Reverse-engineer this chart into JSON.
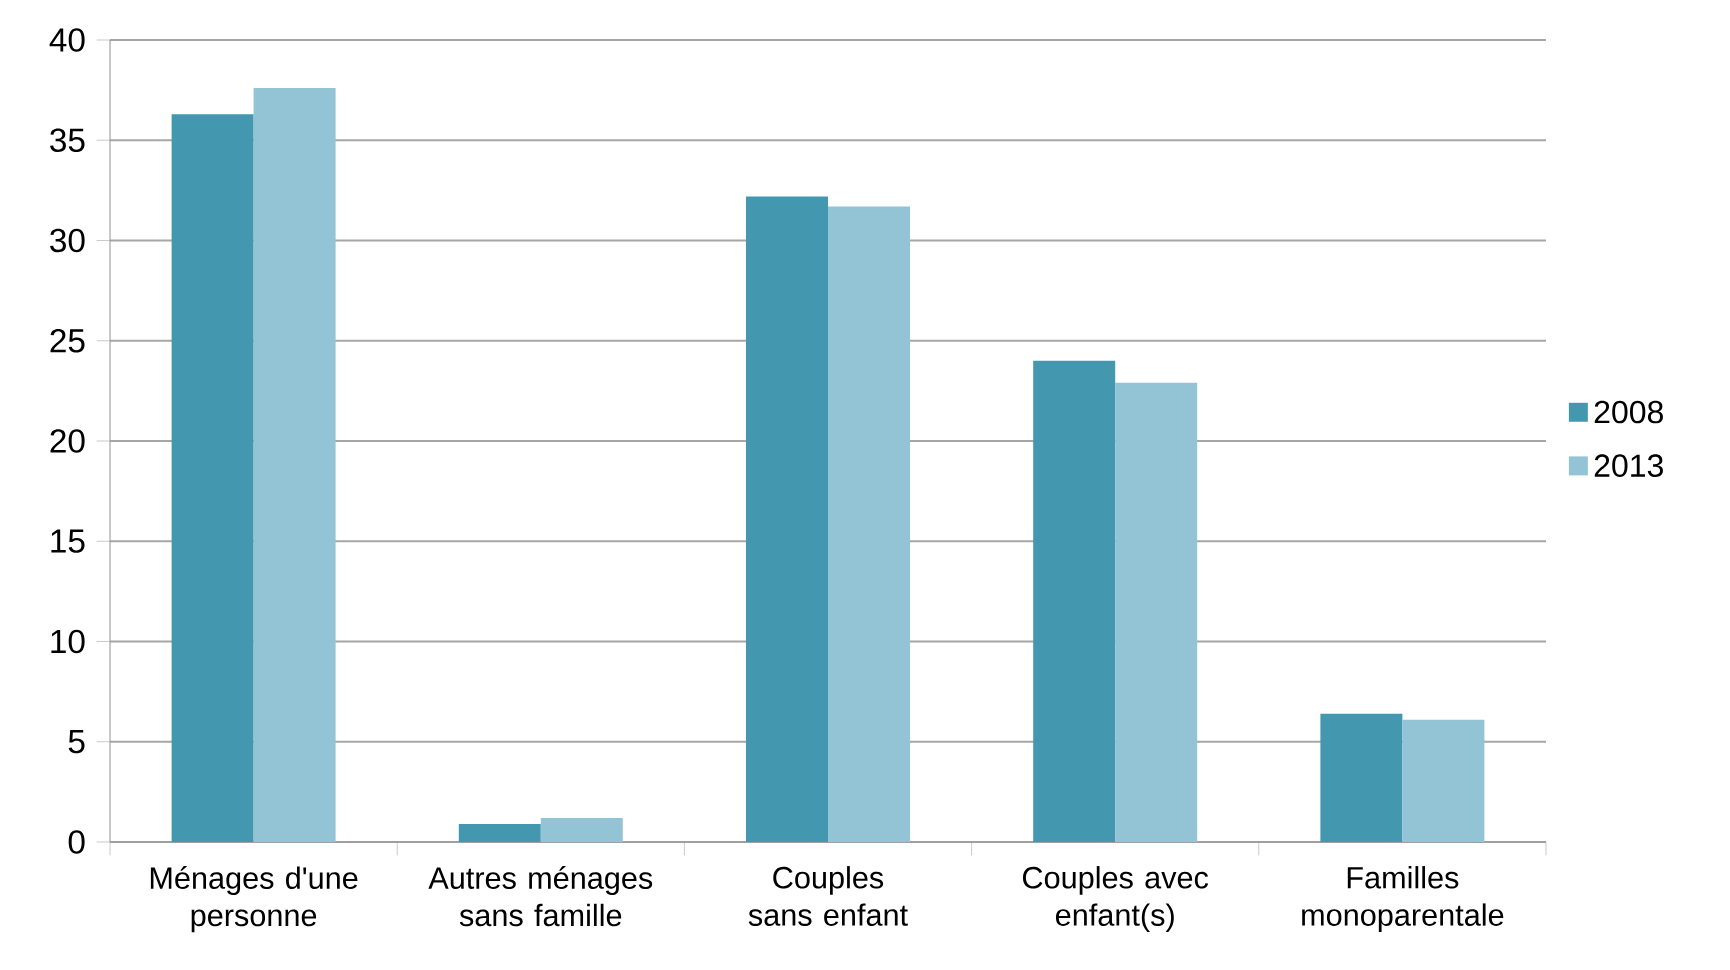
{
  "chart_data": {
    "type": "bar",
    "categories": [
      "Ménages d'une personne",
      "Autres ménages sans famille",
      "Couples sans enfant",
      "Couples avec enfant(s)",
      "Familles monoparentale"
    ],
    "series": [
      {
        "name": "2008",
        "color": "#4397ae",
        "values": [
          36.3,
          0.9,
          32.2,
          24.0,
          6.4
        ]
      },
      {
        "name": "2013",
        "color": "#92c4d5",
        "values": [
          37.6,
          1.2,
          31.7,
          22.9,
          6.1
        ]
      }
    ],
    "ylim": [
      0,
      40
    ],
    "yticks": [
      0,
      5,
      10,
      15,
      20,
      25,
      30,
      35,
      40
    ],
    "grid": "y",
    "legend": "right"
  }
}
